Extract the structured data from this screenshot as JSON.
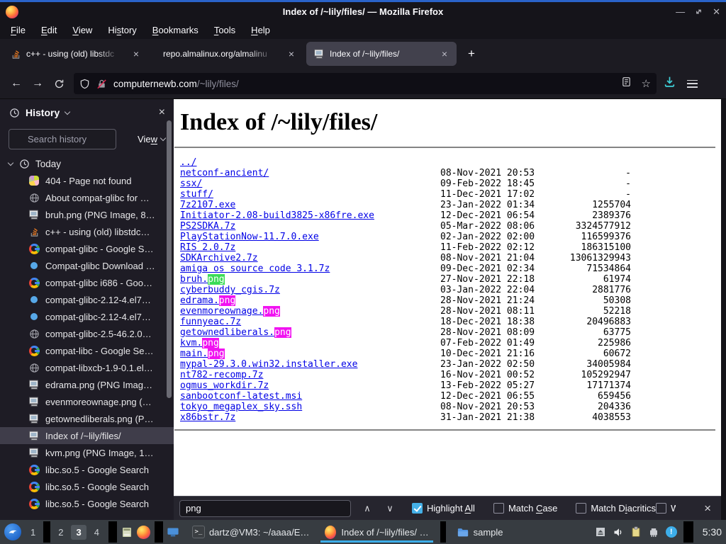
{
  "window": {
    "title": "Index of /~lily/files/ — Mozilla Firefox"
  },
  "menu": {
    "items": [
      {
        "pre": "",
        "key": "F",
        "post": "ile"
      },
      {
        "pre": "",
        "key": "E",
        "post": "dit"
      },
      {
        "pre": "",
        "key": "V",
        "post": "iew"
      },
      {
        "pre": "Hi",
        "key": "s",
        "post": "tory"
      },
      {
        "pre": "",
        "key": "B",
        "post": "ookmarks"
      },
      {
        "pre": "",
        "key": "T",
        "post": "ools"
      },
      {
        "pre": "",
        "key": "H",
        "post": "elp"
      }
    ]
  },
  "tabs": {
    "items": [
      {
        "favicon": "stackoverflow",
        "title": "c++ - using (old) libstdc",
        "active": false,
        "fade": true
      },
      {
        "favicon": "none",
        "title": "repo.almalinux.org/almalinu",
        "active": false,
        "fade": true
      },
      {
        "favicon": "computer",
        "title": "Index of /~lily/files/",
        "active": true,
        "fade": false
      }
    ],
    "close_label": "×",
    "new_tab_label": "+"
  },
  "navbar": {
    "back_label": "←",
    "forward_label": "→",
    "url_host": "computernewb.com",
    "url_path": "/~lily/files/",
    "icons": [
      "shield-icon",
      "insecure-lock-icon",
      "reader-mode-icon",
      "bookmark-star-icon",
      "downloads-icon",
      "menu-icon"
    ],
    "star_glyph": "☆"
  },
  "sidebar": {
    "title": "History",
    "close_label": "×",
    "search_placeholder": "Search history",
    "view_label": {
      "pre": "Vie",
      "key": "w",
      "post": ""
    },
    "group_label": "Today",
    "items": [
      {
        "icon": "favicon-404",
        "label": "404 - Page not found"
      },
      {
        "icon": "globe",
        "label": "About compat-glibc for …"
      },
      {
        "icon": "computer",
        "label": "bruh.png (PNG Image, 8…"
      },
      {
        "icon": "stackoverflow",
        "label": "c++ - using (old) libstdc…"
      },
      {
        "icon": "google",
        "label": "compat-glibc - Google S…"
      },
      {
        "icon": "dot",
        "label": "Compat-glibc Download …"
      },
      {
        "icon": "google",
        "label": "compat-glibc i686 - Goo…"
      },
      {
        "icon": "dot",
        "label": "compat-glibc-2.12-4.el7…"
      },
      {
        "icon": "dot",
        "label": "compat-glibc-2.12-4.el7…"
      },
      {
        "icon": "globe",
        "label": "compat-glibc-2.5-46.2.0…"
      },
      {
        "icon": "google",
        "label": "compat-libc - Google Se…"
      },
      {
        "icon": "globe",
        "label": "compat-libxcb-1.9-0.1.el…"
      },
      {
        "icon": "computer",
        "label": "edrama.png (PNG Imag…"
      },
      {
        "icon": "computer",
        "label": "evenmoreownage.png (…"
      },
      {
        "icon": "computer",
        "label": "getownedliberals.png (P…"
      },
      {
        "icon": "computer",
        "label": "Index of /~lily/files/",
        "selected": true
      },
      {
        "icon": "computer",
        "label": "kvm.png (PNG Image, 1…"
      },
      {
        "icon": "google",
        "label": "libc.so.5 - Google Search"
      },
      {
        "icon": "google",
        "label": "libc.so.5 - Google Search"
      },
      {
        "icon": "google",
        "label": "libc.so.5 - Google Search"
      }
    ]
  },
  "content": {
    "heading": "Index of /~lily/files/",
    "rows": [
      {
        "name": "../",
        "date": "",
        "size": ""
      },
      {
        "name": "netconf-ancient/",
        "date": "08-Nov-2021 20:53",
        "size": "-"
      },
      {
        "name": "ssx/",
        "date": "09-Feb-2022 18:45",
        "size": "-"
      },
      {
        "name": "stuff/",
        "date": "11-Dec-2021 17:02",
        "size": "-"
      },
      {
        "name": "7z2107.exe",
        "date": "23-Jan-2022 01:34",
        "size": "1255704"
      },
      {
        "name": "Initiator-2.08-build3825-x86fre.exe",
        "date": "12-Dec-2021 06:54",
        "size": "2389376"
      },
      {
        "name": "PS2SDKA.7z",
        "date": "05-Mar-2022 08:06",
        "size": "3324577912"
      },
      {
        "name": "PlayStationNow-11.7.0.exe",
        "date": "02-Jan-2022 02:00",
        "size": "116599376"
      },
      {
        "name": "RIS 2.0.7z",
        "date": "11-Feb-2022 02:12",
        "size": "186315100"
      },
      {
        "name": "SDKArchive2.7z",
        "date": "08-Nov-2021 21:04",
        "size": "13061329943"
      },
      {
        "name": "amiga os source code 3.1.7z",
        "date": "09-Dec-2021 02:34",
        "size": "71534864"
      },
      {
        "name": "bruh.",
        "match": "png",
        "hl": "current",
        "date": "27-Nov-2021 22:18",
        "size": "61974"
      },
      {
        "name": "cyberbuddy_cgis.7z",
        "date": "03-Jan-2022 22:04",
        "size": "2881776"
      },
      {
        "name": "edrama.",
        "match": "png",
        "hl": "all",
        "date": "28-Nov-2021 21:24",
        "size": "50308"
      },
      {
        "name": "evenmoreownage.",
        "match": "png",
        "hl": "all",
        "date": "28-Nov-2021 08:11",
        "size": "52218"
      },
      {
        "name": "funnyeac.7z",
        "date": "18-Dec-2021 18:38",
        "size": "20496883"
      },
      {
        "name": "getownedliberals.",
        "match": "png",
        "hl": "all",
        "date": "28-Nov-2021 08:09",
        "size": "63775"
      },
      {
        "name": "kvm.",
        "match": "png",
        "hl": "all",
        "date": "07-Feb-2022 01:49",
        "size": "225986"
      },
      {
        "name": "main.",
        "match": "png",
        "hl": "all",
        "date": "10-Dec-2021 21:16",
        "size": "60672"
      },
      {
        "name": "mypal-29.3.0.win32.installer.exe",
        "date": "23-Jan-2022 02:50",
        "size": "34005984"
      },
      {
        "name": "nt782-recomp.7z",
        "date": "16-Nov-2021 00:52",
        "size": "105292947"
      },
      {
        "name": "ogmus_workdir.7z",
        "date": "13-Feb-2022 05:27",
        "size": "17171374"
      },
      {
        "name": "sanbootconf-latest.msi",
        "date": "12-Dec-2021 06:55",
        "size": "659456"
      },
      {
        "name": "tokyo_megaplex_sky.ssh",
        "date": "08-Nov-2021 20:53",
        "size": "204336"
      },
      {
        "name": "x86bstr.7z",
        "date": "31-Jan-2021 21:38",
        "size": "4038553"
      }
    ]
  },
  "findbar": {
    "query": "png",
    "prev_label": "∧",
    "next_label": "∨",
    "checkboxes": [
      {
        "pre": "Highlight ",
        "key": "A",
        "post": "ll",
        "checked": true
      },
      {
        "pre": "Match ",
        "key": "C",
        "post": "ase",
        "checked": false
      },
      {
        "pre": "Match D",
        "key": "i",
        "post": "acritics",
        "checked": false
      }
    ],
    "truncated_checkbox_label": "W",
    "close_label": "×"
  },
  "taskbar": {
    "workspaces": [
      "1",
      "2",
      "3",
      "4"
    ],
    "active_workspace": "3",
    "quick_launch_icons": [
      "drawer-icon",
      "firefox-icon",
      "display-icon"
    ],
    "tasks": [
      {
        "icon": "terminal",
        "label": "dartz@VM3: ~/aaaa/E…",
        "active": false
      },
      {
        "icon": "firefox",
        "label": "Index of /~lily/files/ …",
        "active": true
      },
      {
        "icon": "folder",
        "label": "sample",
        "active": false
      }
    ],
    "tray_icons": [
      "eject-icon",
      "volume-icon",
      "clipboard-icon",
      "network-icon",
      "notification-icon"
    ],
    "clock": "5:30"
  },
  "colors": {
    "highlight_current": "#3bdb57",
    "highlight_all": "#f112f1",
    "link": "#0000e6",
    "download_accent": "#3fd2da",
    "checkbox_accent": "#45b1e8",
    "task_active_underline": "#3daee9",
    "top_accent": "#2a63c9"
  }
}
